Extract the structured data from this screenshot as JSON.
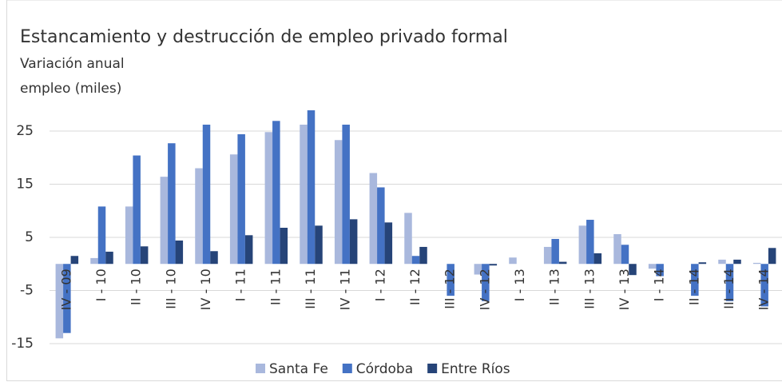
{
  "chart_data": {
    "type": "bar",
    "title": "Estancamiento y destrucción de empleo privado formal",
    "ylabel": [
      "Variación anual",
      "empleo (miles)"
    ],
    "categories": [
      "IV - 09",
      "I - 10",
      "II - 10",
      "III - 10",
      "IV - 10",
      "I - 11",
      "II - 11",
      "III - 11",
      "IV - 11",
      "I - 12",
      "II - 12",
      "III - 12",
      "IV - 12",
      "I - 13",
      "II - 13",
      "III - 13",
      "IV - 13",
      "I - 14",
      "II - 14",
      "III - 14",
      "IV - 14"
    ],
    "series": [
      {
        "name": "Santa Fe",
        "color": "#a9b8dd",
        "values": [
          -14,
          1.1,
          10.8,
          16.4,
          18,
          20.6,
          24.8,
          26.2,
          23.3,
          17.1,
          9.6,
          0,
          -2,
          1.2,
          3.2,
          7.2,
          5.6,
          -0.9,
          0,
          0.8,
          0.2
        ]
      },
      {
        "name": "Córdoba",
        "color": "#4472c4",
        "values": [
          -13,
          10.8,
          20.4,
          22.7,
          26.2,
          24.4,
          26.9,
          28.9,
          26.2,
          14.4,
          1.5,
          -6,
          -7,
          0,
          4.7,
          8.3,
          3.6,
          -2.3,
          -6,
          -7,
          -8
        ]
      },
      {
        "name": "Entre Ríos",
        "color": "#264478",
        "values": [
          1.5,
          2.3,
          3.3,
          4.4,
          2.4,
          5.4,
          6.8,
          7.2,
          8.4,
          7.8,
          3.2,
          0,
          -0.3,
          0,
          0.4,
          2,
          -2.1,
          0,
          0.3,
          0.8,
          3
        ]
      }
    ],
    "ylim": [
      -15,
      30
    ],
    "yticks": [
      -15,
      -5,
      5,
      15,
      25
    ],
    "grid": true,
    "legend": "bottom"
  }
}
